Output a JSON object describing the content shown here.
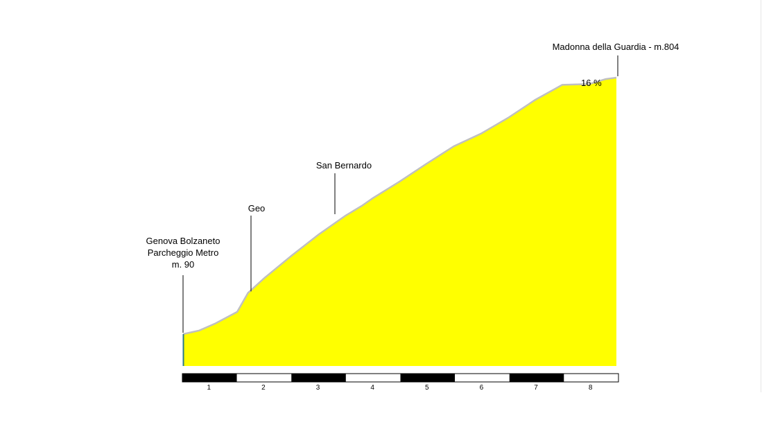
{
  "chart_data": {
    "type": "area",
    "title": "",
    "xlabel": "",
    "ylabel": "",
    "x_unit": "km",
    "xlim": [
      0,
      8
    ],
    "ylim": [
      0,
      804
    ],
    "fill_color": "#ffff00",
    "outline_color": "#c0c0c0",
    "x": [
      0,
      0.3,
      0.6,
      1.0,
      1.2,
      1.5,
      2.0,
      2.5,
      3.0,
      3.3,
      3.5,
      4.0,
      4.5,
      5.0,
      5.5,
      6.0,
      6.5,
      7.0,
      7.5,
      7.8,
      8.0
    ],
    "y": [
      90,
      100,
      120,
      152,
      205,
      246,
      308,
      367,
      420,
      447,
      468,
      515,
      565,
      613,
      648,
      692,
      742,
      784,
      786,
      800,
      804
    ],
    "km_scale": {
      "labels": [
        "1",
        "2",
        "3",
        "4",
        "5",
        "6",
        "7",
        "8"
      ],
      "colors": [
        "#000000",
        "#ffffff",
        "#000000",
        "#ffffff",
        "#000000",
        "#ffffff",
        "#000000",
        "#ffffff"
      ]
    },
    "annotations": [
      {
        "km": 0,
        "lines": [
          "Genova Bolzaneto",
          "Parcheggio Metro",
          "m. 90"
        ]
      },
      {
        "km": 1.25,
        "lines": [
          "Geo"
        ]
      },
      {
        "km": 2.8,
        "lines": [
          "San Bernardo"
        ]
      },
      {
        "km": 8.0,
        "lines": [
          "Madonna della Guardia - m.804"
        ]
      }
    ],
    "grade_label": "16 %"
  }
}
